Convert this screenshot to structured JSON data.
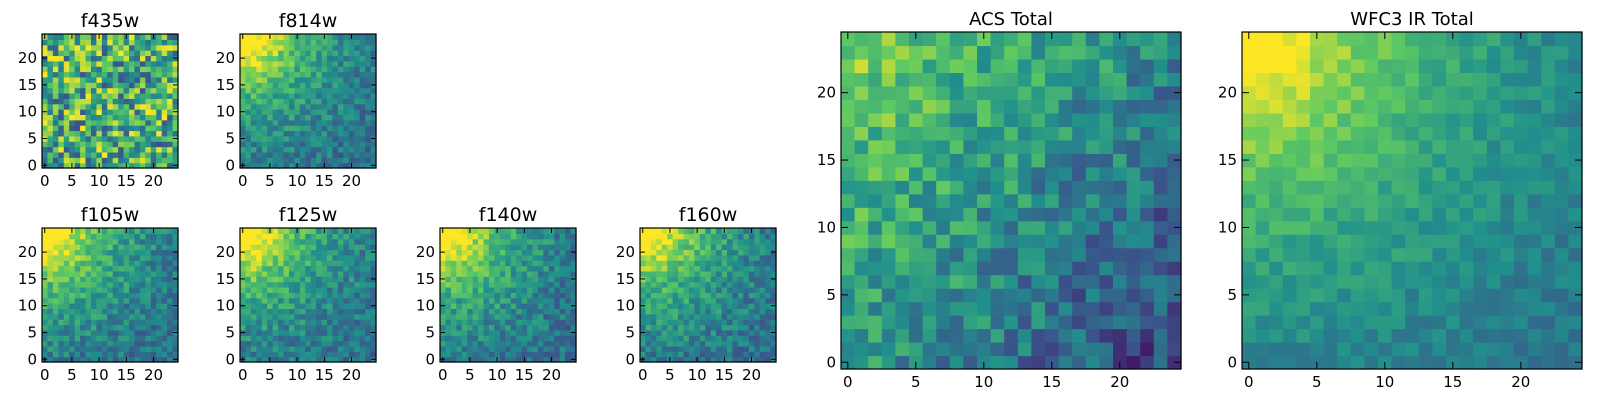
{
  "figure": {
    "colormap": "viridis",
    "colormap_stops": [
      "#440154",
      "#3b528b",
      "#21918c",
      "#5ec962",
      "#fde725"
    ]
  },
  "chart_data": [
    {
      "type": "heatmap",
      "title": "f435w",
      "grid": false,
      "size": 25,
      "seed": 11,
      "pattern": "noise",
      "xlim": [
        0,
        24
      ],
      "ylim": [
        0,
        24
      ],
      "xticks": [
        0,
        5,
        10,
        15,
        20
      ],
      "yticks": [
        0,
        5,
        10,
        15,
        20
      ]
    },
    {
      "type": "heatmap",
      "title": "f814w",
      "grid": false,
      "size": 25,
      "seed": 23,
      "pattern": "corner",
      "xlim": [
        0,
        24
      ],
      "ylim": [
        0,
        24
      ],
      "xticks": [
        0,
        5,
        10,
        15,
        20
      ],
      "yticks": [
        0,
        5,
        10,
        15,
        20
      ]
    },
    {
      "type": "heatmap",
      "title": "f105w",
      "grid": false,
      "size": 25,
      "seed": 37,
      "pattern": "corner",
      "xlim": [
        0,
        24
      ],
      "ylim": [
        0,
        24
      ],
      "xticks": [
        0,
        5,
        10,
        15,
        20
      ],
      "yticks": [
        0,
        5,
        10,
        15,
        20
      ]
    },
    {
      "type": "heatmap",
      "title": "f125w",
      "grid": false,
      "size": 25,
      "seed": 41,
      "pattern": "corner",
      "xlim": [
        0,
        24
      ],
      "ylim": [
        0,
        24
      ],
      "xticks": [
        0,
        5,
        10,
        15,
        20
      ],
      "yticks": [
        0,
        5,
        10,
        15,
        20
      ]
    },
    {
      "type": "heatmap",
      "title": "f140w",
      "grid": false,
      "size": 25,
      "seed": 53,
      "pattern": "corner",
      "xlim": [
        0,
        24
      ],
      "ylim": [
        0,
        24
      ],
      "xticks": [
        0,
        5,
        10,
        15,
        20
      ],
      "yticks": [
        0,
        5,
        10,
        15,
        20
      ]
    },
    {
      "type": "heatmap",
      "title": "f160w",
      "grid": false,
      "size": 25,
      "seed": 67,
      "pattern": "corner",
      "xlim": [
        0,
        24
      ],
      "ylim": [
        0,
        24
      ],
      "xticks": [
        0,
        5,
        10,
        15,
        20
      ],
      "yticks": [
        0,
        5,
        10,
        15,
        20
      ]
    },
    {
      "type": "heatmap",
      "title": "ACS Total",
      "grid": false,
      "size": 25,
      "seed": 79,
      "pattern": "mild",
      "xlim": [
        0,
        24
      ],
      "ylim": [
        0,
        24
      ],
      "xticks": [
        0,
        5,
        10,
        15,
        20
      ],
      "yticks": [
        0,
        5,
        10,
        15,
        20
      ]
    },
    {
      "type": "heatmap",
      "title": "WFC3 IR Total",
      "grid": false,
      "size": 25,
      "seed": 97,
      "pattern": "smooth",
      "xlim": [
        0,
        24
      ],
      "ylim": [
        0,
        24
      ],
      "xticks": [
        0,
        5,
        10,
        15,
        20
      ],
      "yticks": [
        0,
        5,
        10,
        15,
        20
      ]
    }
  ]
}
